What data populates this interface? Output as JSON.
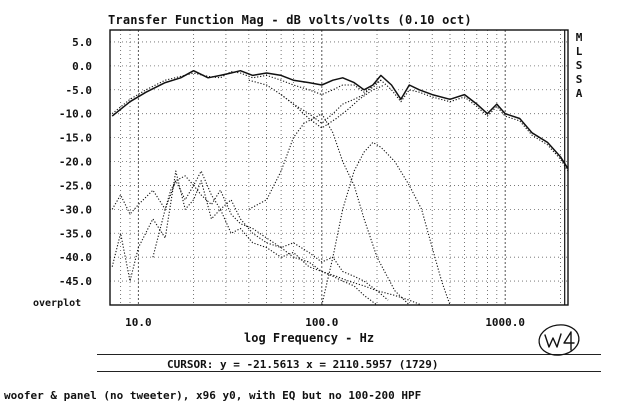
{
  "side_letters": [
    "M",
    "L",
    "S",
    "S",
    "A"
  ],
  "overplot_label": "overplot",
  "cursor_readout": "CURSOR: y = -21.5613 x = 2110.5957 (1729)",
  "caption": "woofer & panel (no tweeter), x96 y0, with EQ but no 100-200 HPF",
  "handwritten_mark": "W4",
  "chart_data": {
    "type": "line",
    "title": "Transfer Function Mag - dB volts/volts (0.10 oct)",
    "xlabel": "log Frequency - Hz",
    "ylabel": "",
    "x_scale": "log",
    "xlim": [
      7,
      2200
    ],
    "ylim": [
      -50,
      7.5
    ],
    "x_ticks": [
      {
        "value": 10,
        "label": "10.0"
      },
      {
        "value": 100,
        "label": "100.0"
      },
      {
        "value": 1000,
        "label": "1000.0"
      }
    ],
    "y_ticks": [
      5,
      0,
      -5,
      -10,
      -15,
      -20,
      -25,
      -30,
      -35,
      -40,
      -45
    ],
    "y_tick_labels": [
      "5.0",
      "0.0",
      "-5.0",
      "-10.0",
      "-15.0",
      "-20.0",
      "-25.0",
      "-30.0",
      "-35.0",
      "-40.0",
      "-45.0"
    ],
    "grid": true,
    "cursor_x": 2110.5957,
    "series": [
      {
        "style": "solid",
        "x": [
          7.2,
          9,
          11,
          14,
          17,
          20,
          24,
          28,
          32,
          36,
          42,
          50,
          60,
          70,
          85,
          100,
          115,
          130,
          150,
          170,
          190,
          210,
          240,
          270,
          300,
          340,
          400,
          500,
          600,
          700,
          800,
          900,
          1000,
          1200,
          1400,
          1700,
          2000,
          2200
        ],
        "y": [
          -10.5,
          -7.5,
          -5.5,
          -3.5,
          -2.5,
          -1,
          -2.5,
          -2,
          -1.5,
          -1,
          -2,
          -1.5,
          -2,
          -3,
          -3.5,
          -4,
          -3,
          -2.5,
          -3.5,
          -5,
          -4,
          -2,
          -4,
          -7,
          -4,
          -5,
          -6,
          -7,
          -6,
          -8,
          -10,
          -8,
          -10,
          -11,
          -14,
          -16,
          -19,
          -21.5
        ]
      },
      {
        "style": "dotted",
        "x": [
          7.2,
          9,
          11,
          14,
          17,
          20,
          24,
          28,
          32,
          36,
          42,
          50,
          60,
          70,
          85,
          100,
          115,
          130,
          150,
          170,
          190,
          210,
          240,
          270,
          300,
          340,
          400,
          500,
          600,
          700,
          800,
          900,
          1000,
          1200,
          1400,
          1700,
          2000,
          2200
        ],
        "y": [
          -10,
          -7,
          -5,
          -3,
          -2.2,
          -1.5,
          -2.2,
          -2.5,
          -1.2,
          -1.5,
          -2.5,
          -2,
          -3,
          -4,
          -5,
          -6,
          -5,
          -4,
          -4,
          -5.5,
          -4.5,
          -3,
          -5,
          -7.5,
          -5,
          -5.5,
          -6.5,
          -7.5,
          -6.5,
          -8.5,
          -10.5,
          -8.5,
          -10.5,
          -11.5,
          -14.5,
          -16.5,
          -19.5,
          -22
        ]
      },
      {
        "style": "dotted",
        "x": [
          40,
          50,
          60,
          70,
          85,
          100,
          120,
          140,
          160,
          190,
          220
        ],
        "y": [
          -3,
          -4,
          -6,
          -8,
          -11,
          -13,
          -11,
          -9,
          -7,
          -5,
          -4
        ]
      },
      {
        "style": "dotted",
        "x": [
          60,
          70,
          85,
          100,
          115,
          130,
          150,
          170,
          190,
          210
        ],
        "y": [
          -6,
          -8,
          -10,
          -12,
          -10,
          -8,
          -7,
          -6,
          -4,
          -3
        ]
      },
      {
        "style": "dotted",
        "x": [
          40,
          50,
          60,
          70,
          80,
          90,
          100,
          115,
          130,
          150,
          170,
          200,
          250,
          300,
          350
        ],
        "y": [
          -30,
          -28,
          -22,
          -15,
          -12,
          -11,
          -10,
          -14,
          -20,
          -25,
          -32,
          -40,
          -47,
          -50,
          -50
        ]
      },
      {
        "style": "dotted",
        "x": [
          100,
          115,
          130,
          150,
          170,
          190,
          210,
          250,
          300,
          350,
          400,
          450,
          500
        ],
        "y": [
          -50,
          -40,
          -30,
          -22,
          -18,
          -16,
          -17,
          -20,
          -25,
          -30,
          -38,
          -45,
          -50
        ]
      },
      {
        "style": "dotted",
        "x": [
          7.2,
          8,
          9,
          10,
          12,
          14,
          16,
          18,
          20,
          22,
          25,
          28,
          32,
          36,
          42,
          50,
          60,
          70,
          85,
          100,
          115,
          130,
          150,
          170,
          200,
          230
        ],
        "y": [
          -30,
          -27,
          -31,
          -29,
          -26,
          -30,
          -24,
          -28,
          -25,
          -27,
          -29,
          -26,
          -31,
          -33,
          -34,
          -36,
          -38,
          -37,
          -39,
          -41,
          -40,
          -43,
          -44,
          -45,
          -47,
          -49
        ]
      },
      {
        "style": "dotted",
        "x": [
          7.2,
          8,
          9,
          10,
          12,
          14,
          16,
          18,
          20,
          22,
          25,
          28,
          32,
          36,
          42,
          50,
          60,
          70,
          85,
          100,
          115,
          130,
          150,
          170,
          200
        ],
        "y": [
          -42,
          -35,
          -45,
          -38,
          -32,
          -36,
          -22,
          -30,
          -28,
          -24,
          -32,
          -30,
          -35,
          -34,
          -37,
          -38,
          -40,
          -39,
          -42,
          -43,
          -44,
          -45,
          -46,
          -48,
          -50
        ]
      },
      {
        "style": "dotted",
        "x": [
          12,
          14,
          15,
          16,
          18,
          20,
          22,
          25,
          28,
          32,
          36,
          42,
          50,
          60,
          70,
          85,
          100,
          120,
          140,
          170,
          200,
          250,
          300,
          350
        ],
        "y": [
          -40,
          -30,
          -26,
          -24,
          -23,
          -25,
          -22,
          -27,
          -30,
          -28,
          -32,
          -35,
          -37,
          -38,
          -40,
          -41,
          -43,
          -44,
          -45,
          -46,
          -47,
          -48,
          -49,
          -50
        ]
      }
    ]
  }
}
